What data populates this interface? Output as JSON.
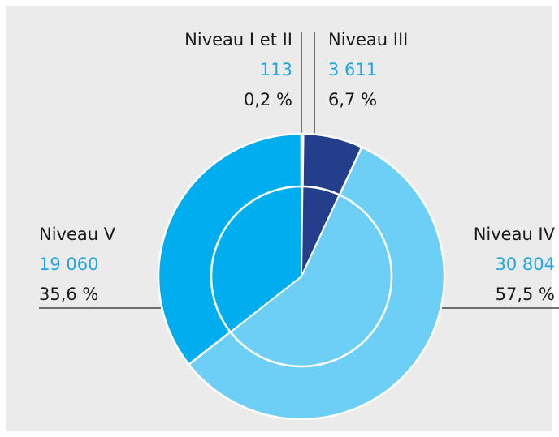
{
  "chart_data": {
    "type": "pie",
    "categories": [
      "Niveau I et II",
      "Niveau III",
      "Niveau IV",
      "Niveau V"
    ],
    "values": [
      113,
      3611,
      30804,
      19060
    ],
    "value_labels": [
      "113",
      "3 611",
      "30 804",
      "19 060"
    ],
    "shares": [
      0.2,
      6.7,
      57.5,
      35.6
    ],
    "share_labels": [
      "0,2 %",
      "6,7 %",
      "57,5 %",
      "35,6 %"
    ],
    "colors": [
      "#1d3a8a",
      "#233f8b",
      "#6dcff6",
      "#00aeef"
    ]
  }
}
